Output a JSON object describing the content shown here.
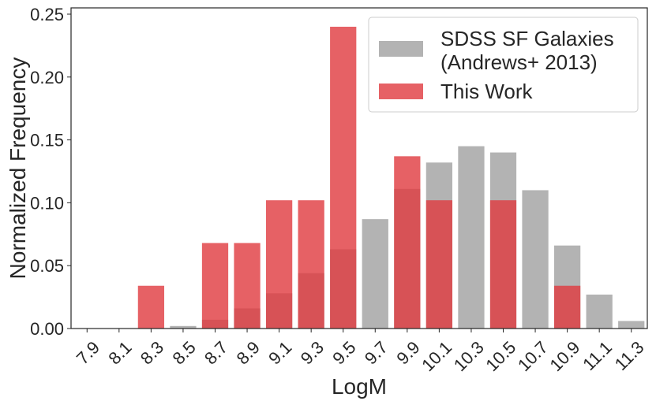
{
  "chart_data": {
    "type": "bar",
    "xlabel": "LogM",
    "ylabel": "Normalized Frequency",
    "ylim": [
      0,
      0.255
    ],
    "yticks": [
      "0.00",
      "0.05",
      "0.10",
      "0.15",
      "0.20",
      "0.25"
    ],
    "ytick_values": [
      0,
      0.05,
      0.1,
      0.15,
      0.2,
      0.25
    ],
    "categories": [
      "7.9",
      "8.1",
      "8.3",
      "8.5",
      "8.7",
      "8.9",
      "9.1",
      "9.3",
      "9.5",
      "9.7",
      "9.9",
      "10.1",
      "10.3",
      "10.5",
      "10.7",
      "10.9",
      "11.1",
      "11.3"
    ],
    "grid": false,
    "legend_position": "top-right",
    "series": [
      {
        "name": "SDSS SF Galaxies\n(Andrews+ 2013)",
        "legend_lines": [
          "SDSS SF Galaxies",
          "(Andrews+ 2013)"
        ],
        "color": "#a6a6a6",
        "opacity": 0.85,
        "values": [
          0,
          0,
          0,
          0.002,
          0.007,
          0.016,
          0.028,
          0.044,
          0.063,
          0.087,
          0.111,
          0.132,
          0.145,
          0.14,
          0.11,
          0.066,
          0.027,
          0.006
        ]
      },
      {
        "name": "This Work",
        "legend_lines": [
          "This Work"
        ],
        "color": "#e03a3e",
        "opacity": 0.8,
        "values": [
          0,
          0,
          0.034,
          0,
          0.068,
          0.068,
          0.102,
          0.102,
          0.24,
          0,
          0.137,
          0.102,
          0,
          0.102,
          0,
          0.034,
          0,
          0
        ]
      }
    ]
  }
}
